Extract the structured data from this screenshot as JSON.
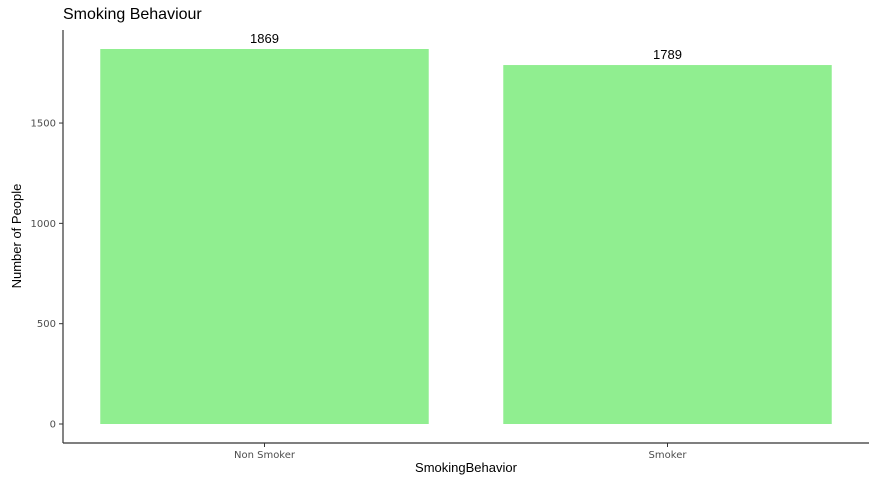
{
  "chart_data": {
    "type": "bar",
    "title": "Smoking Behaviour",
    "xlabel": "SmokingBehavior",
    "ylabel": "Number of People",
    "categories": [
      "Non Smoker",
      "Smoker"
    ],
    "values": [
      1869,
      1789
    ],
    "data_labels": [
      "1869",
      "1789"
    ],
    "bar_color": "#90EE90",
    "ylim": [
      0,
      1869
    ],
    "yticks": [
      0,
      500,
      1000,
      1500
    ],
    "ytick_labels": [
      "0",
      "500",
      "1000",
      "1500"
    ],
    "grid": false,
    "legend": "none"
  }
}
